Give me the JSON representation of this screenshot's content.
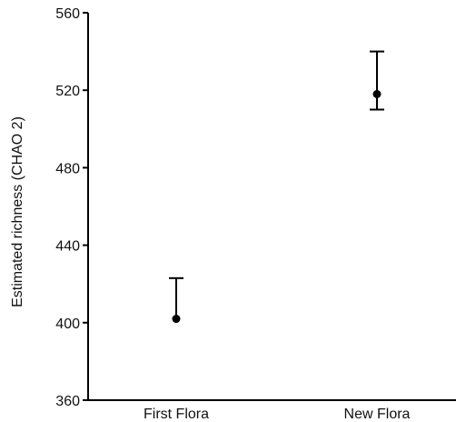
{
  "chart_data": {
    "type": "scatter",
    "title": "",
    "xlabel": "",
    "ylabel": "Estimated richness (CHAO 2)",
    "categories": [
      "First Flora",
      "New Flora"
    ],
    "ylim": [
      360,
      560
    ],
    "yticks": [
      360,
      400,
      440,
      480,
      520,
      560
    ],
    "series": [
      {
        "values": [
          402,
          518
        ],
        "upper": [
          423,
          540
        ],
        "lower": [
          402,
          510
        ]
      }
    ],
    "grid": false,
    "legend": "none"
  }
}
